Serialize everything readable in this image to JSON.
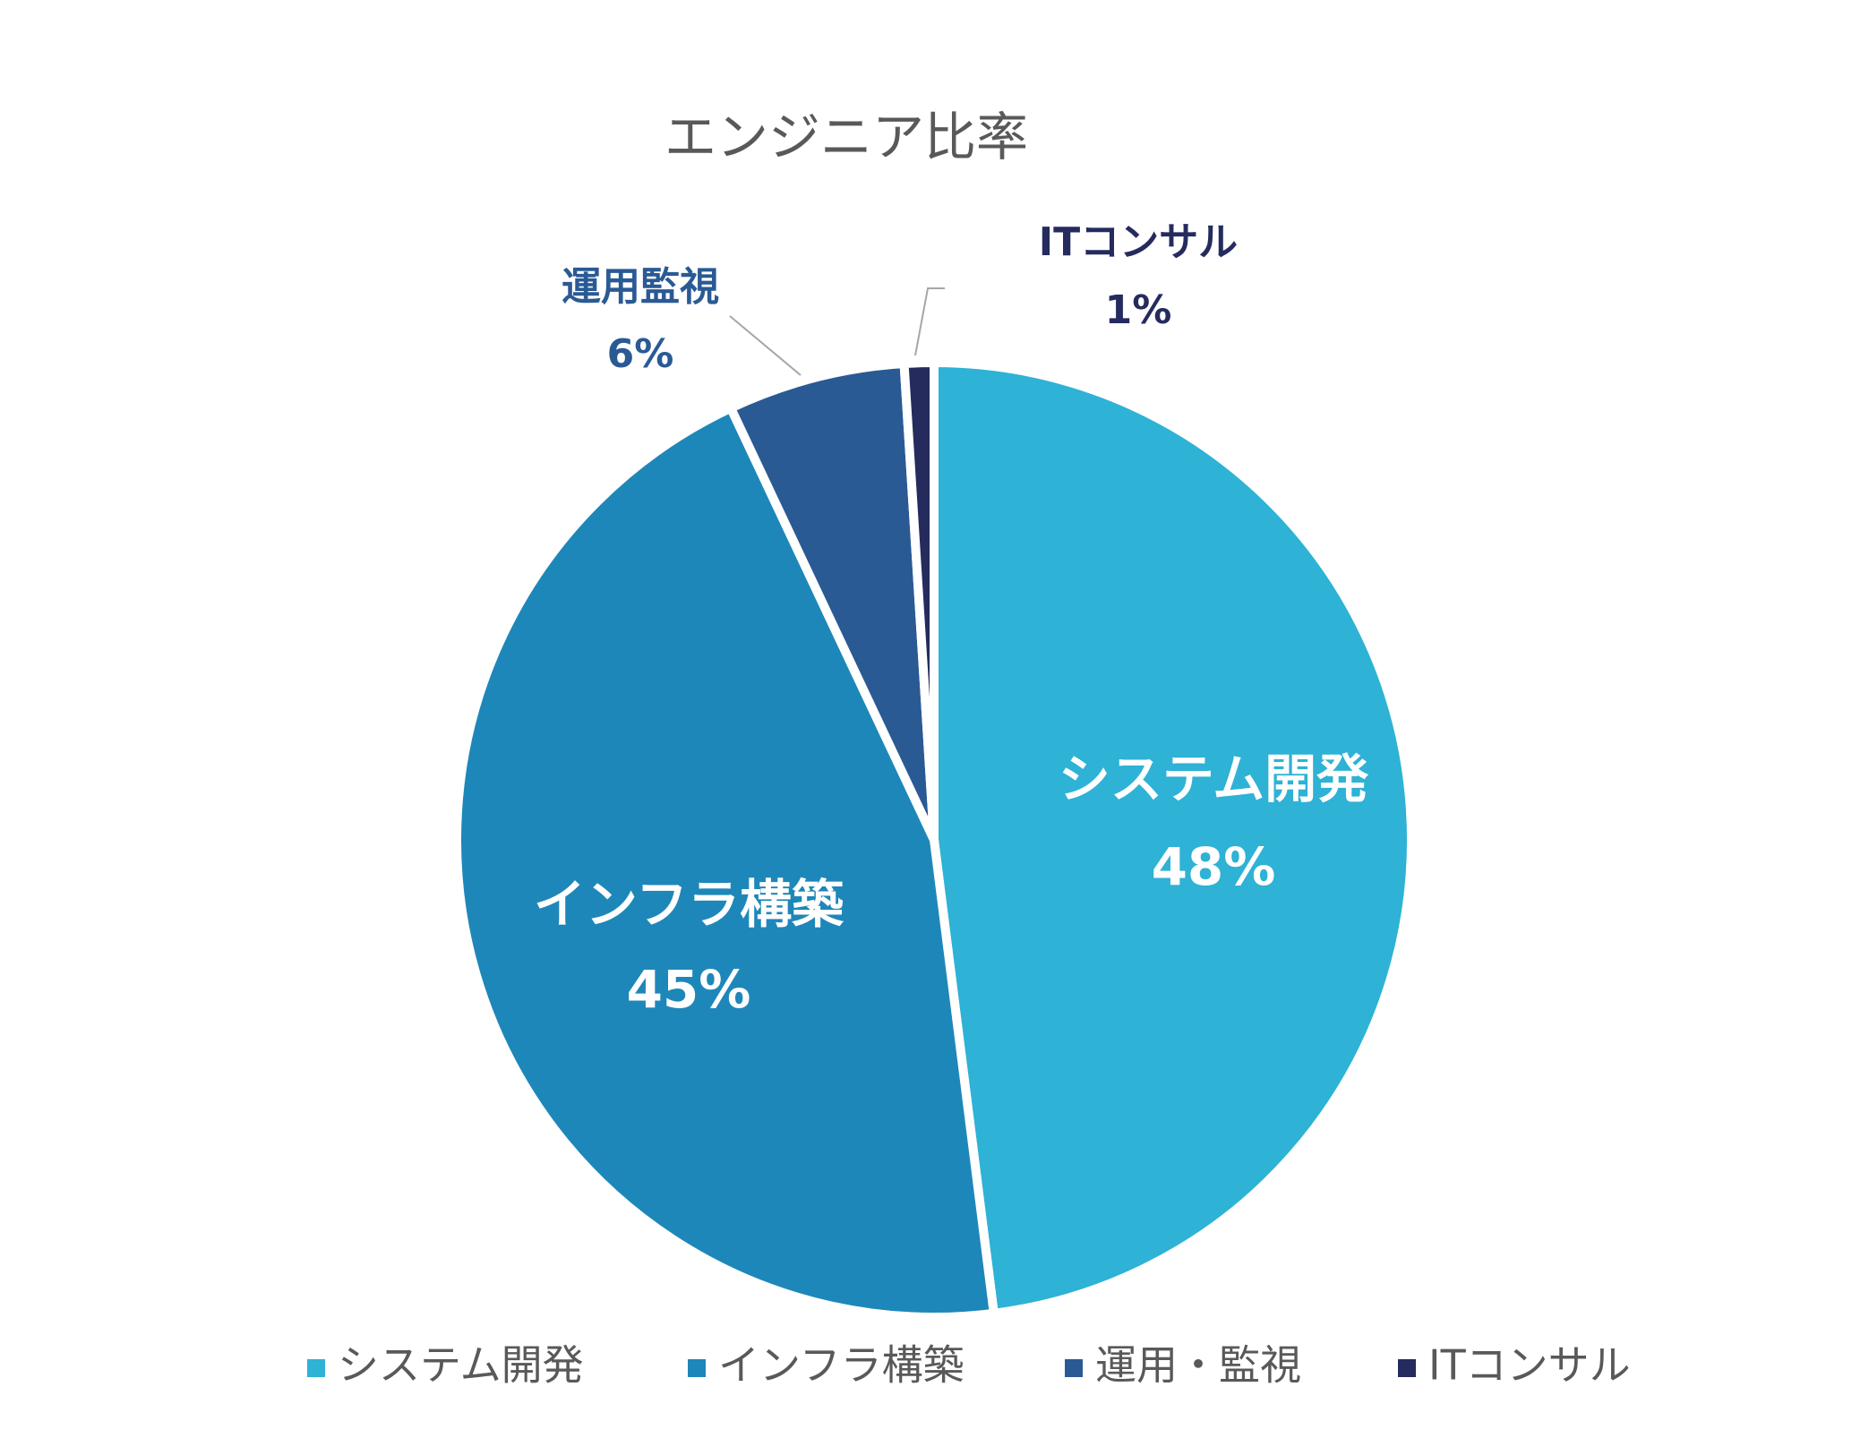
{
  "chart_data": {
    "type": "pie",
    "title": "エンジニア比率",
    "categories": [
      "システム開発",
      "インフラ構築",
      "運用・監視",
      "ITコンサル"
    ],
    "label_texts": [
      "システム開発",
      "インフラ構築",
      "運用監視",
      "ITコンサル"
    ],
    "values": [
      48,
      45,
      6,
      1
    ],
    "value_labels": [
      "48%",
      "45%",
      "6%",
      "1%"
    ],
    "colors": [
      "#2eb2d5",
      "#1e87b9",
      "#2a5a94",
      "#262b5e"
    ],
    "legend": "bottom"
  }
}
